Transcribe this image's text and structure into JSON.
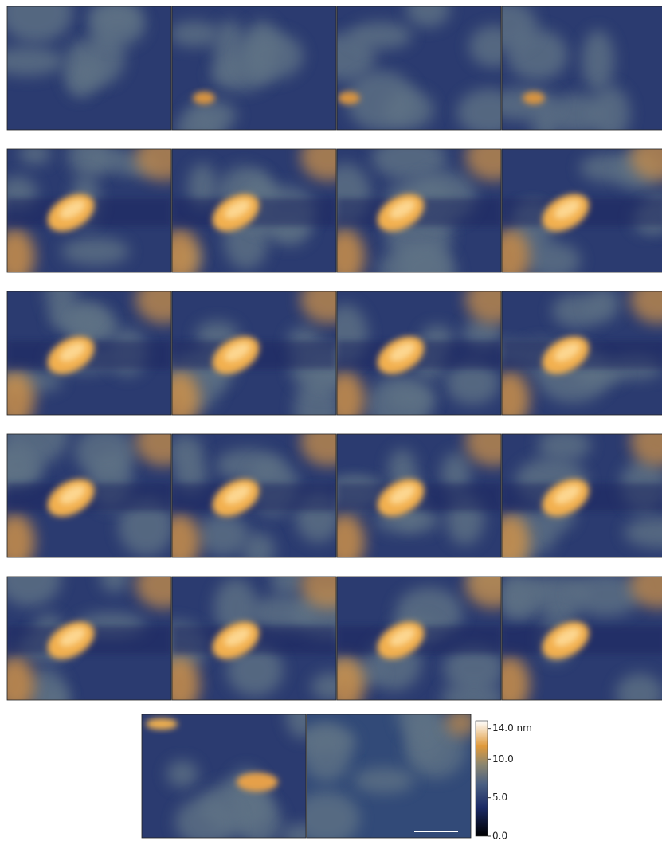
{
  "colorbar": {
    "range": [
      0,
      15
    ],
    "ticks": [
      {
        "value": 14,
        "label": "14.0 nm"
      },
      {
        "value": 10,
        "label": "10.0"
      },
      {
        "value": 5,
        "label": "5.0"
      },
      {
        "value": 0,
        "label": "0.0"
      }
    ]
  }
}
